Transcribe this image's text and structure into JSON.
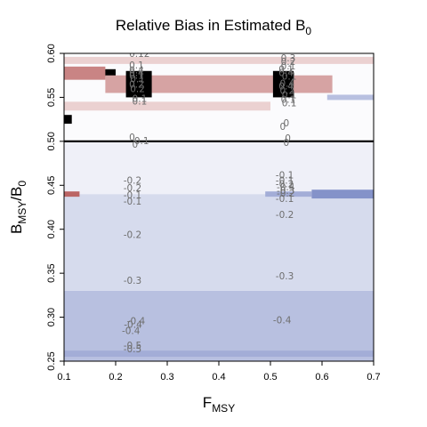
{
  "chart_data": {
    "type": "heatmap",
    "title": "Relative Bias in Estimated B",
    "title_subscript": "0",
    "xlabel": "F",
    "xlabel_subscript": "MSY",
    "ylabel_parts": [
      "B",
      "MSY",
      "/B",
      "0"
    ],
    "xlim": [
      0.1,
      0.7
    ],
    "ylim": [
      0.25,
      0.6
    ],
    "x_ticks": [
      "0.1",
      "0.2",
      "0.3",
      "0.4",
      "0.5",
      "0.6",
      "0.7"
    ],
    "y_ticks": [
      "0.25",
      "0.30",
      "0.35",
      "0.40",
      "0.45",
      "0.50",
      "0.55",
      "0.60"
    ],
    "reference_line_y": 0.5,
    "colors": {
      "negative": "#7080c0",
      "positive": "#a02828",
      "zero": "#ffffff",
      "line": "#000000"
    },
    "regions": [
      {
        "x": [
          0.1,
          0.7
        ],
        "y": [
          0.25,
          0.33
        ],
        "value": -0.35
      },
      {
        "x": [
          0.1,
          0.7
        ],
        "y": [
          0.33,
          0.44
        ],
        "value": -0.2
      },
      {
        "x": [
          0.1,
          0.7
        ],
        "y": [
          0.44,
          0.5
        ],
        "value": -0.08
      },
      {
        "x": [
          0.1,
          0.7
        ],
        "y": [
          0.5,
          0.6
        ],
        "value": -0.02
      },
      {
        "x": [
          0.1,
          0.7
        ],
        "y": [
          0.255,
          0.262
        ],
        "value": -0.45
      },
      {
        "x": [
          0.58,
          0.7
        ],
        "y": [
          0.435,
          0.445
        ],
        "value": -0.6
      },
      {
        "x": [
          0.49,
          0.58
        ],
        "y": [
          0.437,
          0.443
        ],
        "value": -0.45
      },
      {
        "x": [
          0.61,
          0.7
        ],
        "y": [
          0.547,
          0.553
        ],
        "value": -0.35
      },
      {
        "x": [
          0.1,
          0.13
        ],
        "y": [
          0.437,
          0.443
        ],
        "value": 0.5
      },
      {
        "x": [
          0.1,
          0.7
        ],
        "y": [
          0.588,
          0.596
        ],
        "value": 0.15
      },
      {
        "x": [
          0.1,
          0.5
        ],
        "y": [
          0.535,
          0.545
        ],
        "value": 0.15
      },
      {
        "x": [
          0.1,
          0.115
        ],
        "y": [
          0.52,
          0.53
        ],
        "value": 1.0
      },
      {
        "x": [
          0.1,
          0.2
        ],
        "y": [
          0.574,
          0.582
        ],
        "value": 1.0
      },
      {
        "x": [
          0.1,
          0.18
        ],
        "y": [
          0.57,
          0.585
        ],
        "value": 0.4
      },
      {
        "x": [
          0.2,
          0.57
        ],
        "y": [
          0.56,
          0.57
        ],
        "value": 1.0
      },
      {
        "x": [
          0.18,
          0.62
        ],
        "y": [
          0.555,
          0.575
        ],
        "value": 0.3
      },
      {
        "x": [
          0.22,
          0.27
        ],
        "y": [
          0.55,
          0.58
        ],
        "value": 1.0
      },
      {
        "x": [
          0.505,
          0.545
        ],
        "y": [
          0.55,
          0.58
        ],
        "value": 1.0
      }
    ],
    "contour_labels": [
      {
        "text": "0.12",
        "x": 0.226,
        "y": 0.596
      },
      {
        "text": "0.1",
        "x": 0.226,
        "y": 0.583
      },
      {
        "text": "0.4",
        "x": 0.226,
        "y": 0.577
      },
      {
        "text": "0.4",
        "x": 0.226,
        "y": 0.574
      },
      {
        "text": "0.1",
        "x": 0.226,
        "y": 0.571
      },
      {
        "text": "0.1",
        "x": 0.228,
        "y": 0.567
      },
      {
        "text": "0.2",
        "x": 0.226,
        "y": 0.561
      },
      {
        "text": "0.2",
        "x": 0.228,
        "y": 0.556
      },
      {
        "text": "0.1",
        "x": 0.232,
        "y": 0.545
      },
      {
        "text": "0.1",
        "x": 0.232,
        "y": 0.542
      },
      {
        "text": "0",
        "x": 0.226,
        "y": 0.501
      },
      {
        "text": "0.1",
        "x": 0.236,
        "y": 0.497
      },
      {
        "text": "0",
        "x": 0.232,
        "y": 0.493
      },
      {
        "text": "-0.2",
        "x": 0.215,
        "y": 0.452
      },
      {
        "text": "-0.2",
        "x": 0.215,
        "y": 0.443
      },
      {
        "text": "-0.1",
        "x": 0.215,
        "y": 0.435
      },
      {
        "text": "-0.1",
        "x": 0.215,
        "y": 0.428
      },
      {
        "text": "-0.2",
        "x": 0.215,
        "y": 0.39
      },
      {
        "text": "-0.3",
        "x": 0.215,
        "y": 0.338
      },
      {
        "text": "-0.4",
        "x": 0.222,
        "y": 0.292
      },
      {
        "text": "-0.4",
        "x": 0.216,
        "y": 0.288
      },
      {
        "text": "-0.4",
        "x": 0.212,
        "y": 0.281
      },
      {
        "text": "-0.5",
        "x": 0.215,
        "y": 0.264
      },
      {
        "text": "-0.5",
        "x": 0.215,
        "y": 0.26
      },
      {
        "text": "0",
        "x": 0.518,
        "y": 0.6
      },
      {
        "text": "0.3",
        "x": 0.52,
        "y": 0.591
      },
      {
        "text": "0.2",
        "x": 0.52,
        "y": 0.587
      },
      {
        "text": "0.1",
        "x": 0.52,
        "y": 0.582
      },
      {
        "text": "0.1",
        "x": 0.516,
        "y": 0.578
      },
      {
        "text": "0.4",
        "x": 0.516,
        "y": 0.574
      },
      {
        "text": "0.1",
        "x": 0.522,
        "y": 0.57
      },
      {
        "text": "0.4",
        "x": 0.518,
        "y": 0.562
      },
      {
        "text": "0.4",
        "x": 0.516,
        "y": 0.559
      },
      {
        "text": "0.2",
        "x": 0.518,
        "y": 0.554
      },
      {
        "text": "0.1",
        "x": 0.522,
        "y": 0.549
      },
      {
        "text": "0.1",
        "x": 0.52,
        "y": 0.544
      },
      {
        "text": "0.1",
        "x": 0.522,
        "y": 0.54
      },
      {
        "text": "0",
        "x": 0.525,
        "y": 0.517
      },
      {
        "text": "0",
        "x": 0.518,
        "y": 0.513
      },
      {
        "text": "0",
        "x": 0.528,
        "y": 0.5
      },
      {
        "text": "0",
        "x": 0.525,
        "y": 0.495
      },
      {
        "text": "-0.1",
        "x": 0.51,
        "y": 0.458
      },
      {
        "text": "-0.1",
        "x": 0.51,
        "y": 0.452
      },
      {
        "text": "-0.2",
        "x": 0.51,
        "y": 0.448
      },
      {
        "text": "-0.4",
        "x": 0.512,
        "y": 0.444
      },
      {
        "text": "-0.3",
        "x": 0.512,
        "y": 0.44
      },
      {
        "text": "-0.2",
        "x": 0.512,
        "y": 0.437
      },
      {
        "text": "-0.1",
        "x": 0.51,
        "y": 0.431
      },
      {
        "text": "-0.2",
        "x": 0.51,
        "y": 0.413
      },
      {
        "text": "-0.3",
        "x": 0.51,
        "y": 0.343
      },
      {
        "text": "-0.4",
        "x": 0.505,
        "y": 0.293
      }
    ]
  }
}
